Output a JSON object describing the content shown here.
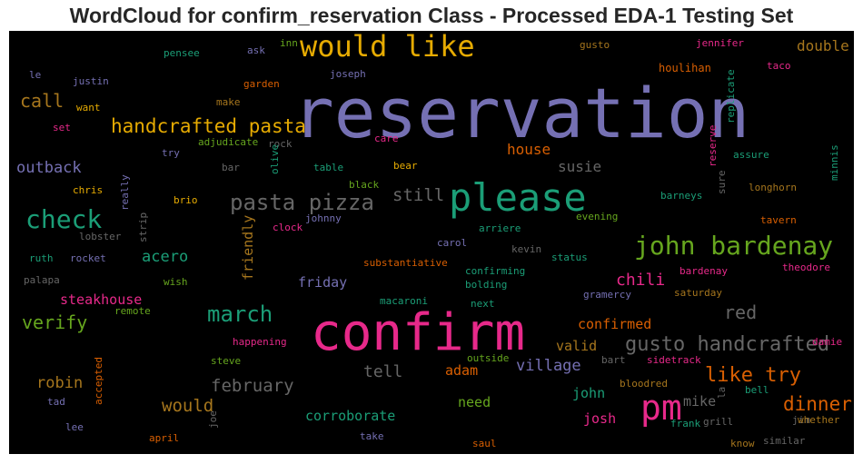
{
  "title": "WordCloud for confirm_reservation Class - Processed EDA-1 Testing Set",
  "colors": {
    "background": "#000000",
    "purple": "#7570b3",
    "green": "#1b9e77",
    "magenta": "#e7298a",
    "orange": "#d95f02",
    "olive": "#66a61e",
    "gold": "#e6ab02",
    "brown": "#a6761d",
    "gray": "#666666"
  },
  "chart_data": {
    "type": "wordcloud",
    "title": "WordCloud for confirm_reservation Class - Processed EDA-1 Testing Set",
    "words": [
      {
        "text": "reservation",
        "weight": 1.0,
        "color": "purple"
      },
      {
        "text": "confirm",
        "weight": 0.72,
        "color": "magenta"
      },
      {
        "text": "please",
        "weight": 0.56,
        "color": "green"
      },
      {
        "text": "would like",
        "weight": 0.44,
        "color": "gold"
      },
      {
        "text": "pm",
        "weight": 0.42,
        "color": "magenta"
      },
      {
        "text": "john bardenay",
        "weight": 0.38,
        "color": "olive"
      },
      {
        "text": "check",
        "weight": 0.36,
        "color": "green"
      },
      {
        "text": "march",
        "weight": 0.3,
        "color": "green"
      },
      {
        "text": "pasta pizza",
        "weight": 0.3,
        "color": "gray"
      },
      {
        "text": "gusto handcrafted",
        "weight": 0.28,
        "color": "gray"
      },
      {
        "text": "like try",
        "weight": 0.28,
        "color": "orange"
      },
      {
        "text": "handcrafted pasta",
        "weight": 0.27,
        "color": "gold"
      },
      {
        "text": "dinner",
        "weight": 0.26,
        "color": "orange"
      },
      {
        "text": "verify",
        "weight": 0.25,
        "color": "olive"
      },
      {
        "text": "red",
        "weight": 0.25,
        "color": "gray"
      },
      {
        "text": "call",
        "weight": 0.24,
        "color": "brown"
      },
      {
        "text": "still",
        "weight": 0.23,
        "color": "gray"
      },
      {
        "text": "february",
        "weight": 0.23,
        "color": "gray"
      },
      {
        "text": "would",
        "weight": 0.23,
        "color": "brown"
      },
      {
        "text": "chili",
        "weight": 0.22,
        "color": "magenta"
      },
      {
        "text": "tell",
        "weight": 0.22,
        "color": "gray"
      },
      {
        "text": "acero",
        "weight": 0.21,
        "color": "green"
      },
      {
        "text": "outback",
        "weight": 0.21,
        "color": "purple"
      },
      {
        "text": "village",
        "weight": 0.21,
        "color": "purple"
      },
      {
        "text": "robin",
        "weight": 0.21,
        "color": "brown"
      },
      {
        "text": "double",
        "weight": 0.2,
        "color": "brown"
      },
      {
        "text": "house",
        "weight": 0.2,
        "color": "orange"
      },
      {
        "text": "susie",
        "weight": 0.2,
        "color": "gray"
      },
      {
        "text": "friendly",
        "weight": 0.2,
        "color": "brown"
      },
      {
        "text": "steakhouse",
        "weight": 0.2,
        "color": "magenta"
      },
      {
        "text": "confirmed",
        "weight": 0.2,
        "color": "orange"
      },
      {
        "text": "valid",
        "weight": 0.2,
        "color": "brown"
      },
      {
        "text": "friday",
        "weight": 0.2,
        "color": "purple"
      },
      {
        "text": "corroborate",
        "weight": 0.2,
        "color": "green"
      },
      {
        "text": "need",
        "weight": 0.19,
        "color": "olive"
      },
      {
        "text": "josh",
        "weight": 0.19,
        "color": "magenta"
      },
      {
        "text": "adam",
        "weight": 0.19,
        "color": "orange"
      },
      {
        "text": "mike",
        "weight": 0.19,
        "color": "gray"
      },
      {
        "text": "john",
        "weight": 0.19,
        "color": "green"
      },
      {
        "text": "houlihan",
        "weight": 0.15,
        "color": "orange"
      },
      {
        "text": "justin",
        "weight": 0.14,
        "color": "purple"
      },
      {
        "text": "pensee",
        "weight": 0.14,
        "color": "green"
      },
      {
        "text": "inn",
        "weight": 0.14,
        "color": "olive"
      },
      {
        "text": "ask",
        "weight": 0.14,
        "color": "purple"
      },
      {
        "text": "gusto",
        "weight": 0.14,
        "color": "brown"
      },
      {
        "text": "jennifer",
        "weight": 0.14,
        "color": "magenta"
      },
      {
        "text": "le",
        "weight": 0.14,
        "color": "purple"
      },
      {
        "text": "joseph",
        "weight": 0.14,
        "color": "purple"
      },
      {
        "text": "taco",
        "weight": 0.14,
        "color": "magenta"
      },
      {
        "text": "garden",
        "weight": 0.14,
        "color": "orange"
      },
      {
        "text": "replicate",
        "weight": 0.14,
        "color": "green"
      },
      {
        "text": "make",
        "weight": 0.14,
        "color": "brown"
      },
      {
        "text": "want",
        "weight": 0.14,
        "color": "gold"
      },
      {
        "text": "set",
        "weight": 0.14,
        "color": "magenta"
      },
      {
        "text": "adjudicate",
        "weight": 0.14,
        "color": "olive"
      },
      {
        "text": "rock",
        "weight": 0.14,
        "color": "gray"
      },
      {
        "text": "care",
        "weight": 0.14,
        "color": "magenta"
      },
      {
        "text": "reserve",
        "weight": 0.14,
        "color": "magenta"
      },
      {
        "text": "try",
        "weight": 0.14,
        "color": "purple"
      },
      {
        "text": "assure",
        "weight": 0.14,
        "color": "green"
      },
      {
        "text": "minnis",
        "weight": 0.14,
        "color": "green"
      },
      {
        "text": "bar",
        "weight": 0.14,
        "color": "gray"
      },
      {
        "text": "olive",
        "weight": 0.14,
        "color": "green"
      },
      {
        "text": "table",
        "weight": 0.14,
        "color": "green"
      },
      {
        "text": "bear",
        "weight": 0.14,
        "color": "gold"
      },
      {
        "text": "sure",
        "weight": 0.14,
        "color": "gray"
      },
      {
        "text": "chris",
        "weight": 0.14,
        "color": "gold"
      },
      {
        "text": "really",
        "weight": 0.14,
        "color": "purple"
      },
      {
        "text": "black",
        "weight": 0.14,
        "color": "olive"
      },
      {
        "text": "barneys",
        "weight": 0.14,
        "color": "green"
      },
      {
        "text": "longhorn",
        "weight": 0.14,
        "color": "brown"
      },
      {
        "text": "brio",
        "weight": 0.14,
        "color": "gold"
      },
      {
        "text": "strip",
        "weight": 0.14,
        "color": "gray"
      },
      {
        "text": "johnny",
        "weight": 0.14,
        "color": "purple"
      },
      {
        "text": "clock",
        "weight": 0.14,
        "color": "magenta"
      },
      {
        "text": "arriere",
        "weight": 0.14,
        "color": "green"
      },
      {
        "text": "evening",
        "weight": 0.14,
        "color": "olive"
      },
      {
        "text": "tavern",
        "weight": 0.14,
        "color": "orange"
      },
      {
        "text": "lobster",
        "weight": 0.14,
        "color": "gray"
      },
      {
        "text": "carol",
        "weight": 0.14,
        "color": "purple"
      },
      {
        "text": "kevin",
        "weight": 0.14,
        "color": "gray"
      },
      {
        "text": "ruth",
        "weight": 0.14,
        "color": "green"
      },
      {
        "text": "rocket",
        "weight": 0.14,
        "color": "purple"
      },
      {
        "text": "status",
        "weight": 0.14,
        "color": "green"
      },
      {
        "text": "substantiative",
        "weight": 0.14,
        "color": "orange"
      },
      {
        "text": "bardenay",
        "weight": 0.14,
        "color": "magenta"
      },
      {
        "text": "theodore",
        "weight": 0.14,
        "color": "magenta"
      },
      {
        "text": "palapa",
        "weight": 0.14,
        "color": "gray"
      },
      {
        "text": "wish",
        "weight": 0.14,
        "color": "olive"
      },
      {
        "text": "confirming",
        "weight": 0.14,
        "color": "green"
      },
      {
        "text": "bolding",
        "weight": 0.14,
        "color": "green"
      },
      {
        "text": "gramercy",
        "weight": 0.14,
        "color": "purple"
      },
      {
        "text": "saturday",
        "weight": 0.14,
        "color": "brown"
      },
      {
        "text": "macaroni",
        "weight": 0.14,
        "color": "green"
      },
      {
        "text": "next",
        "weight": 0.14,
        "color": "green"
      },
      {
        "text": "remote",
        "weight": 0.14,
        "color": "olive"
      },
      {
        "text": "happening",
        "weight": 0.14,
        "color": "magenta"
      },
      {
        "text": "damie",
        "weight": 0.14,
        "color": "magenta"
      },
      {
        "text": "outside",
        "weight": 0.14,
        "color": "olive"
      },
      {
        "text": "bart",
        "weight": 0.14,
        "color": "gray"
      },
      {
        "text": "sidetrack",
        "weight": 0.14,
        "color": "magenta"
      },
      {
        "text": "steve",
        "weight": 0.14,
        "color": "olive"
      },
      {
        "text": "accepted",
        "weight": 0.14,
        "color": "orange"
      },
      {
        "text": "bloodred",
        "weight": 0.14,
        "color": "brown"
      },
      {
        "text": "tad",
        "weight": 0.14,
        "color": "purple"
      },
      {
        "text": "bell",
        "weight": 0.14,
        "color": "green"
      },
      {
        "text": "la",
        "weight": 0.14,
        "color": "gray"
      },
      {
        "text": "lee",
        "weight": 0.14,
        "color": "purple"
      },
      {
        "text": "joe",
        "weight": 0.14,
        "color": "gray"
      },
      {
        "text": "frank",
        "weight": 0.14,
        "color": "green"
      },
      {
        "text": "grill",
        "weight": 0.14,
        "color": "gray"
      },
      {
        "text": "jim",
        "weight": 0.14,
        "color": "gray"
      },
      {
        "text": "whether",
        "weight": 0.14,
        "color": "brown"
      },
      {
        "text": "april",
        "weight": 0.14,
        "color": "orange"
      },
      {
        "text": "take",
        "weight": 0.14,
        "color": "purple"
      },
      {
        "text": "saul",
        "weight": 0.14,
        "color": "orange"
      },
      {
        "text": "know",
        "weight": 0.14,
        "color": "brown"
      },
      {
        "text": "similar",
        "weight": 0.14,
        "color": "gray"
      }
    ]
  }
}
